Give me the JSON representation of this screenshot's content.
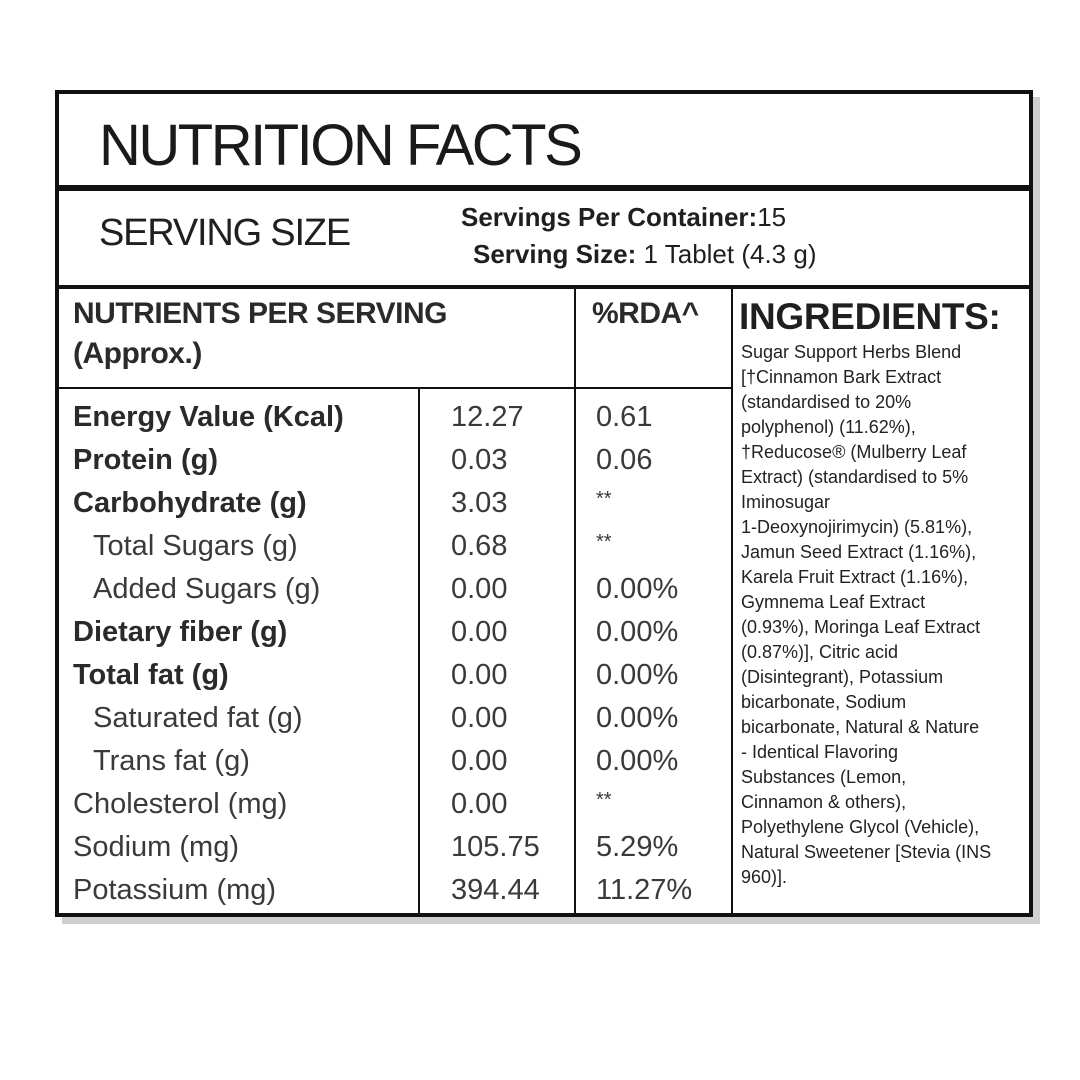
{
  "title": "NUTRITION FACTS",
  "serving": {
    "label": "SERVING SIZE",
    "servings_per_container_label": "Servings Per Container:",
    "servings_per_container_value": "15",
    "serving_size_label": "Serving Size:",
    "serving_size_value": "1 Tablet (4.3 g)"
  },
  "table": {
    "header_nutrients": "NUTRIENTS PER SERVING",
    "header_approx": "(Approx.)",
    "header_rda": "%RDA^",
    "rows": [
      {
        "name": "Energy Value (Kcal)",
        "value": "12.27",
        "rda": "0.61",
        "style": "bold"
      },
      {
        "name": "Protein (g)",
        "value": "0.03",
        "rda": "0.06",
        "style": "bold"
      },
      {
        "name": "Carbohydrate (g)",
        "value": "3.03",
        "rda": "**",
        "style": "bold"
      },
      {
        "name": "Total Sugars (g)",
        "value": "0.68",
        "rda": "**",
        "style": "indent"
      },
      {
        "name": "Added Sugars (g)",
        "value": "0.00",
        "rda": "0.00%",
        "style": "indent"
      },
      {
        "name": "Dietary fiber (g)",
        "value": "0.00",
        "rda": "0.00%",
        "style": "bold"
      },
      {
        "name": "Total fat (g)",
        "value": "0.00",
        "rda": "0.00%",
        "style": "bold"
      },
      {
        "name": "Saturated fat (g)",
        "value": "0.00",
        "rda": "0.00%",
        "style": "indent"
      },
      {
        "name": "Trans fat (g)",
        "value": "0.00",
        "rda": "0.00%",
        "style": "indent"
      },
      {
        "name": "Cholesterol (mg)",
        "value": "0.00",
        "rda": "**",
        "style": "normal"
      },
      {
        "name": "Sodium (mg)",
        "value": "105.75",
        "rda": "5.29%",
        "style": "normal"
      },
      {
        "name": "Potassium (mg)",
        "value": "394.44",
        "rda": "11.27%",
        "style": "normal"
      }
    ]
  },
  "ingredients": {
    "title": "INGREDIENTS:",
    "lines": [
      "Sugar Support Herbs Blend",
      "[†Cinnamon Bark Extract",
      "(standardised to 20%",
      "polyphenol) (11.62%),",
      "†Reducose® (Mulberry Leaf",
      "Extract) (standardised to 5%",
      "Iminosugar",
      "1-Deoxynojirimycin) (5.81%),",
      "Jamun Seed Extract (1.16%),",
      "Karela Fruit Extract (1.16%),",
      "Gymnema Leaf Extract",
      "(0.93%), Moringa Leaf Extract",
      "(0.87%)], Citric acid",
      "(Disintegrant), Potassium",
      "bicarbonate, Sodium",
      "bicarbonate, Natural & Nature",
      "- Identical Flavoring",
      "Substances (Lemon,",
      "Cinnamon & others),",
      "Polyethylene Glycol (Vehicle),",
      "Natural Sweetener [Stevia (INS",
      "960)]."
    ]
  }
}
